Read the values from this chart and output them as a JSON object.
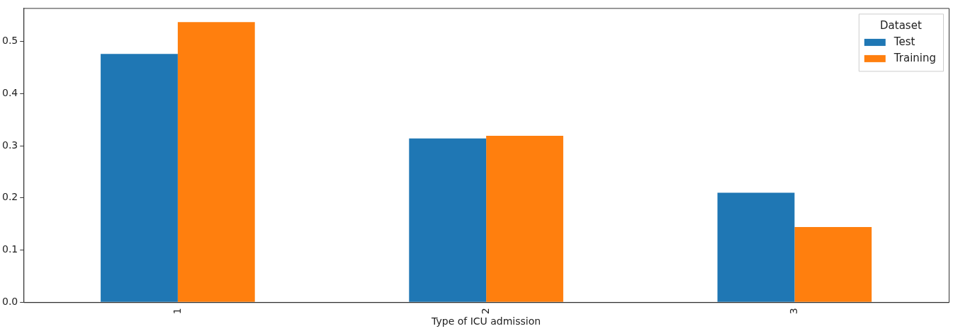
{
  "chart_data": {
    "type": "bar",
    "xlabel": "Type of ICU admission",
    "legend_title": "Dataset",
    "categories": [
      "1",
      "2",
      "3"
    ],
    "series": [
      {
        "name": "Test",
        "color": "#1f77b4",
        "values": [
          0.476,
          0.314,
          0.21
        ]
      },
      {
        "name": "Training",
        "color": "#ff7f0e",
        "values": [
          0.537,
          0.319,
          0.144
        ]
      }
    ],
    "ylim": [
      0,
      0.564
    ],
    "yticks": [
      {
        "value": 0,
        "label": "0.0"
      },
      {
        "value": 0.1,
        "label": "0.1"
      },
      {
        "value": 0.2,
        "label": "0.2"
      },
      {
        "value": 0.3,
        "label": "0.3"
      },
      {
        "value": 0.4,
        "label": "0.4"
      },
      {
        "value": 0.5,
        "label": "0.5"
      }
    ],
    "grid": false,
    "legend": "top right"
  }
}
